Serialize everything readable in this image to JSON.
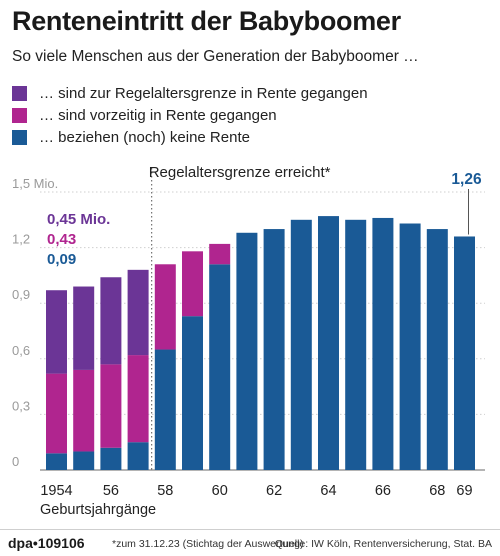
{
  "title": "Renteneintritt der Babyboomer",
  "subtitle": "So viele Menschen aus der Generation der Babyboomer …",
  "legend": [
    {
      "label": "… sind zur Regelaltersgrenze in Rente gegangen",
      "color": "#6b3596"
    },
    {
      "label": "… sind vorzeitig in Rente gegangen",
      "color": "#b0258f"
    },
    {
      "label": "… beziehen (noch) keine Rente",
      "color": "#1a5a96"
    }
  ],
  "footer": {
    "brand": "dpa",
    "brand_dot": "•",
    "brand_id": "109106",
    "footnote": "*zum 31.12.23 (Stichtag der Auswertung)",
    "source": "Quelle: IW Köln, Rentenversicherung, Stat. BA"
  },
  "chart_data": {
    "type": "bar",
    "stacked": true,
    "categories": [
      "1954",
      "1955",
      "1956",
      "1957",
      "1958",
      "1959",
      "1960",
      "1961",
      "1962",
      "1963",
      "1964",
      "1965",
      "1966",
      "1967",
      "1968",
      "1969"
    ],
    "tick_labels": [
      "1954",
      "",
      "56",
      "",
      "58",
      "",
      "60",
      "",
      "62",
      "",
      "64",
      "",
      "66",
      "",
      "68",
      "69"
    ],
    "xlabel": "Geburtsjahrgänge",
    "ylim": [
      0,
      1.5
    ],
    "yticks": [
      0,
      0.3,
      0.6,
      0.9,
      1.2,
      1.5
    ],
    "ytick_labels": [
      "0",
      "0,3",
      "0,6",
      "0,9",
      "1,2",
      "1,5 Mio."
    ],
    "grid": true,
    "series": [
      {
        "key": "none",
        "color": "#1a5a96",
        "values": [
          0.09,
          0.1,
          0.12,
          0.15,
          0.65,
          0.83,
          1.11,
          1.28,
          1.3,
          1.35,
          1.37,
          1.35,
          1.36,
          1.33,
          1.3,
          1.26
        ]
      },
      {
        "key": "early",
        "color": "#b0258f",
        "values": [
          0.43,
          0.44,
          0.45,
          0.47,
          0.46,
          0.35,
          0.11,
          0,
          0,
          0,
          0,
          0,
          0,
          0,
          0,
          0
        ]
      },
      {
        "key": "regular",
        "color": "#6b3596",
        "values": [
          0.45,
          0.45,
          0.47,
          0.46,
          0,
          0,
          0,
          0,
          0,
          0,
          0,
          0,
          0,
          0,
          0,
          0
        ]
      }
    ],
    "annotations": {
      "regelalter_label": "Regelaltersgrenze erreicht*",
      "regelalter_after": "1957",
      "first_bar": [
        {
          "text": "0,45 Mio.",
          "color": "#6b3596"
        },
        {
          "text": "0,43",
          "color": "#b0258f"
        },
        {
          "text": "0,09",
          "color": "#1a5a96"
        }
      ],
      "last_bar": {
        "text": "1,26",
        "color": "#1a5a96"
      }
    }
  }
}
